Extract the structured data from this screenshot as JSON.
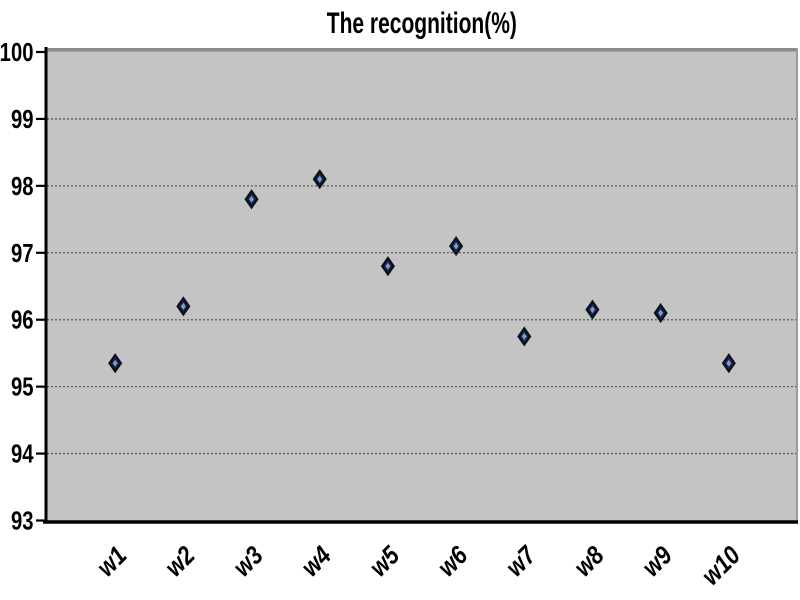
{
  "chart_data": {
    "type": "scatter",
    "title": "The recognition(%)",
    "categories": [
      "w1",
      "w2",
      "w3",
      "w4",
      "w5",
      "w6",
      "w7",
      "w8",
      "w9",
      "w10"
    ],
    "values": [
      95.35,
      96.2,
      97.8,
      98.1,
      96.8,
      97.1,
      95.75,
      96.15,
      96.1,
      95.35
    ],
    "xlabel": "",
    "ylabel": "",
    "ylim": [
      93,
      100
    ],
    "ytick_step": 1,
    "grid": "horizontal-dotted",
    "legend_position": "none",
    "marker": "diamond"
  },
  "style": {
    "background": "#ffffff",
    "plot_background": "#c4c4c4",
    "plot_top_border": "#8a8a8a",
    "plot_right_border": "#9a9a9a",
    "axis_color": "#000000",
    "gridline_color": "#4d4d4d",
    "marker_fill": "#1c2a4a",
    "marker_stroke": "#0b1020",
    "marker_center": "#7f9cd4",
    "label_color": "#000000"
  }
}
